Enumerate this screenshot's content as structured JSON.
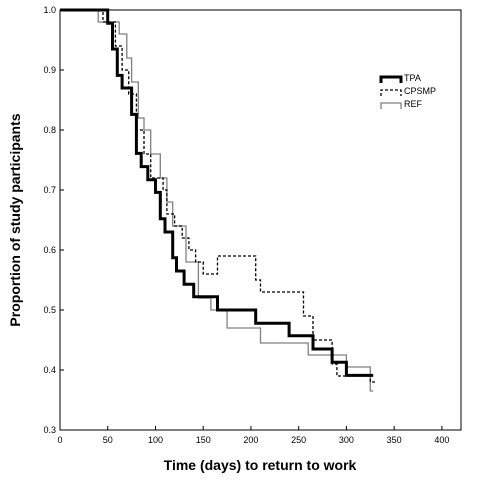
{
  "chart_data": {
    "type": "line",
    "title": "",
    "xlabel": "Time (days) to return to work",
    "ylabel": "Proportion of study participants",
    "xlim": [
      0,
      420
    ],
    "ylim": [
      0.3,
      1.0
    ],
    "x_ticks": [
      "0",
      "50",
      "100",
      "150",
      "200",
      "250",
      "300",
      "350",
      "400"
    ],
    "y_ticks": [
      "0.3",
      "0.4",
      "0.5",
      "0.6",
      "0.7",
      "0.8",
      "0.9",
      "1.0"
    ],
    "grid": false,
    "legend_position": "top-right",
    "series": [
      {
        "name": "TPA",
        "style": "solid-thick",
        "color": "#000000",
        "x": [
          0,
          50,
          50,
          55,
          55,
          60,
          60,
          65,
          65,
          75,
          75,
          80,
          80,
          85,
          85,
          92,
          92,
          100,
          100,
          105,
          105,
          110,
          110,
          118,
          118,
          122,
          122,
          130,
          130,
          140,
          140,
          165,
          165,
          205,
          205,
          240,
          240,
          265,
          265,
          285,
          285,
          300,
          300,
          328
        ],
        "y": [
          1.0,
          1.0,
          0.978,
          0.978,
          0.935,
          0.935,
          0.891,
          0.891,
          0.87,
          0.87,
          0.826,
          0.826,
          0.761,
          0.761,
          0.739,
          0.739,
          0.717,
          0.717,
          0.696,
          0.696,
          0.652,
          0.652,
          0.63,
          0.63,
          0.587,
          0.587,
          0.565,
          0.565,
          0.543,
          0.543,
          0.522,
          0.522,
          0.5,
          0.5,
          0.478,
          0.478,
          0.457,
          0.457,
          0.435,
          0.435,
          0.413,
          0.413,
          0.391,
          0.391
        ]
      },
      {
        "name": "CPSMP",
        "style": "dashed",
        "color": "#000000",
        "x": [
          0,
          45,
          45,
          58,
          58,
          65,
          65,
          72,
          72,
          80,
          80,
          88,
          88,
          95,
          95,
          108,
          108,
          112,
          112,
          120,
          120,
          128,
          128,
          135,
          135,
          142,
          142,
          150,
          150,
          165,
          165,
          205,
          205,
          210,
          210,
          255,
          255,
          265,
          265,
          285,
          285,
          290,
          290,
          325,
          325,
          330
        ],
        "y": [
          1.0,
          1.0,
          0.98,
          0.98,
          0.94,
          0.94,
          0.9,
          0.9,
          0.86,
          0.86,
          0.8,
          0.8,
          0.76,
          0.76,
          0.72,
          0.72,
          0.7,
          0.7,
          0.66,
          0.66,
          0.64,
          0.64,
          0.62,
          0.62,
          0.6,
          0.6,
          0.58,
          0.58,
          0.56,
          0.56,
          0.59,
          0.59,
          0.55,
          0.55,
          0.53,
          0.53,
          0.49,
          0.49,
          0.45,
          0.45,
          0.41,
          0.41,
          0.39,
          0.39,
          0.38,
          0.38
        ]
      },
      {
        "name": "REF",
        "style": "solid-gray",
        "color": "#808080",
        "x": [
          0,
          40,
          40,
          62,
          62,
          70,
          70,
          75,
          75,
          82,
          82,
          88,
          88,
          95,
          95,
          105,
          105,
          112,
          112,
          118,
          118,
          132,
          132,
          145,
          145,
          158,
          158,
          175,
          175,
          210,
          210,
          260,
          260,
          300,
          300,
          325,
          325,
          328
        ],
        "y": [
          1.0,
          1.0,
          0.98,
          0.98,
          0.96,
          0.96,
          0.92,
          0.92,
          0.88,
          0.88,
          0.82,
          0.82,
          0.8,
          0.8,
          0.76,
          0.76,
          0.72,
          0.72,
          0.68,
          0.68,
          0.64,
          0.64,
          0.58,
          0.58,
          0.52,
          0.52,
          0.5,
          0.5,
          0.47,
          0.47,
          0.445,
          0.445,
          0.425,
          0.425,
          0.405,
          0.405,
          0.365,
          0.365
        ]
      }
    ]
  }
}
